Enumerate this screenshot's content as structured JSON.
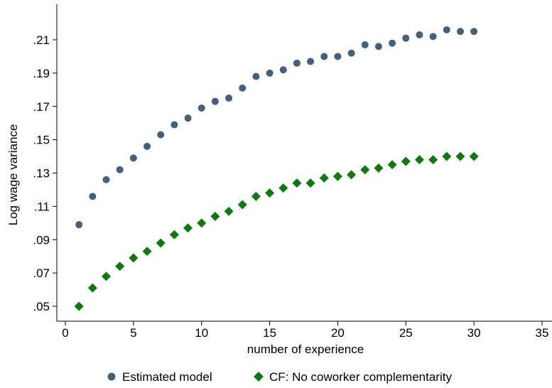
{
  "chart_data": {
    "type": "scatter",
    "title": "",
    "xlabel": "number of experience",
    "ylabel": "Log wage variance",
    "xlim": [
      0,
      35
    ],
    "ylim": [
      0.045,
      0.225
    ],
    "xticks": [
      0,
      5,
      10,
      15,
      20,
      25,
      30,
      35
    ],
    "xtick_labels": [
      "0",
      "5",
      "10",
      "15",
      "20",
      "25",
      "30",
      "35"
    ],
    "yticks": [
      0.05,
      0.07,
      0.09,
      0.11,
      0.13,
      0.15,
      0.17,
      0.19,
      0.21
    ],
    "ytick_labels": [
      ".05",
      ".07",
      ".09",
      ".11",
      ".13",
      ".15",
      ".17",
      ".19",
      ".21"
    ],
    "grid": false,
    "legend_position": "bottom",
    "series": [
      {
        "name": "Estimated model",
        "marker": "circle",
        "color": "#44607a",
        "x": [
          1,
          2,
          3,
          4,
          5,
          6,
          7,
          8,
          9,
          10,
          11,
          12,
          13,
          14,
          15,
          16,
          17,
          18,
          19,
          20,
          21,
          22,
          23,
          24,
          25,
          26,
          27,
          28,
          29,
          30
        ],
        "y": [
          0.099,
          0.116,
          0.126,
          0.132,
          0.139,
          0.146,
          0.153,
          0.159,
          0.163,
          0.169,
          0.173,
          0.175,
          0.181,
          0.188,
          0.19,
          0.192,
          0.196,
          0.197,
          0.2,
          0.2,
          0.202,
          0.207,
          0.206,
          0.208,
          0.211,
          0.213,
          0.212,
          0.216,
          0.215,
          0.215
        ]
      },
      {
        "name": "CF: No coworker complementarity",
        "marker": "diamond",
        "color": "#0e7a0e",
        "x": [
          1,
          2,
          3,
          4,
          5,
          6,
          7,
          8,
          9,
          10,
          11,
          12,
          13,
          14,
          15,
          16,
          17,
          18,
          19,
          20,
          21,
          22,
          23,
          24,
          25,
          26,
          27,
          28,
          29,
          30
        ],
        "y": [
          0.05,
          0.061,
          0.068,
          0.074,
          0.079,
          0.083,
          0.088,
          0.093,
          0.097,
          0.1,
          0.104,
          0.107,
          0.111,
          0.116,
          0.118,
          0.121,
          0.124,
          0.124,
          0.127,
          0.128,
          0.129,
          0.132,
          0.133,
          0.135,
          0.137,
          0.138,
          0.138,
          0.14,
          0.14,
          0.14
        ]
      }
    ]
  }
}
